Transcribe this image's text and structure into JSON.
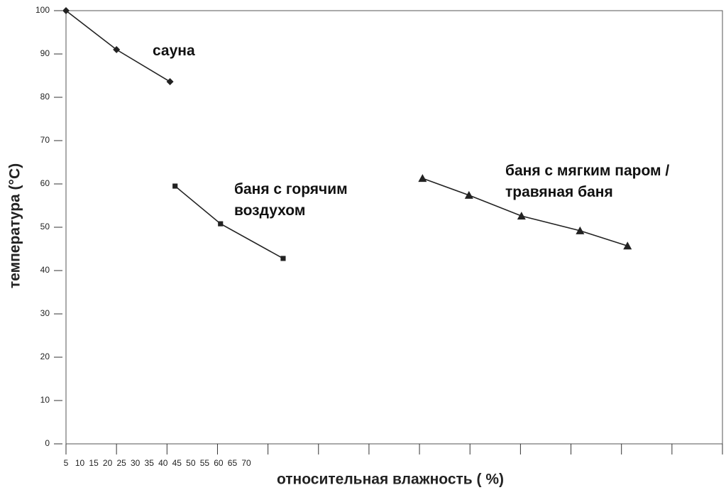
{
  "chart_data": {
    "type": "line",
    "xlabel": "относительная влажность ( %)",
    "ylabel": "температура (°C)",
    "xlim": [
      5,
      70
    ],
    "ylim": [
      0,
      100
    ],
    "xticks": [
      5,
      10,
      15,
      20,
      25,
      30,
      35,
      40,
      45,
      50,
      55,
      60,
      65,
      70
    ],
    "yticks": [
      0,
      10,
      20,
      30,
      40,
      50,
      60,
      70,
      80,
      90,
      100
    ],
    "grid": false,
    "series": [
      {
        "name": "сауна",
        "color": "#222222",
        "marker": "diamond",
        "x": [
          5,
          10,
          15.3
        ],
        "values": [
          100,
          91,
          83.6
        ]
      },
      {
        "name": "баня с горячим воздухом",
        "color": "#222222",
        "marker": "square",
        "x": [
          15.8,
          20.3,
          26.5
        ],
        "values": [
          59.5,
          50.8,
          42.8
        ]
      },
      {
        "name": "баня с мягким паром / травяная баня",
        "color": "#222222",
        "marker": "triangle",
        "x": [
          40.3,
          44.9,
          50.1,
          55.9,
          60.6
        ],
        "values": [
          61.3,
          57.4,
          52.6,
          49.2,
          45.7
        ]
      }
    ]
  }
}
